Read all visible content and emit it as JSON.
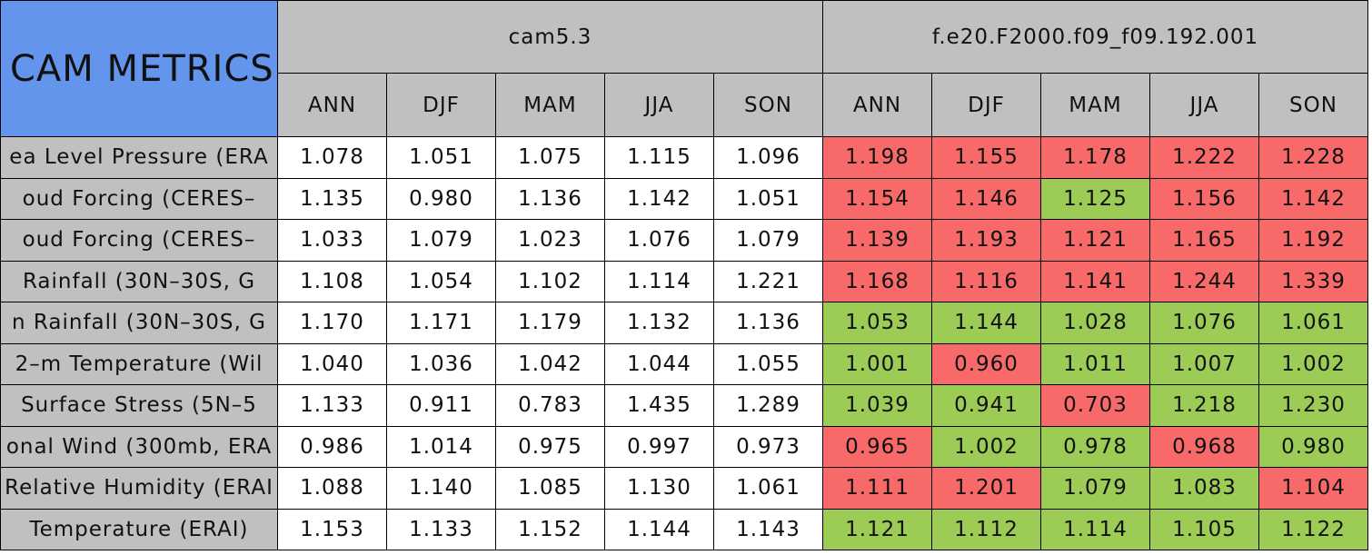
{
  "header": {
    "title": "CAM METRICS",
    "groups": [
      "cam5.3",
      "f.e20.F2000.f09_f09.192.001"
    ],
    "seasons": [
      "ANN",
      "DJF",
      "MAM",
      "JJA",
      "SON"
    ]
  },
  "colors": {
    "header": "#c0c0c0",
    "title": "#6495ed",
    "plain": "#ffffff",
    "red": "#f86a6a",
    "green": "#9ccb56"
  },
  "table": {
    "rows": [
      {
        "label": "ea Level Pressure (ERA",
        "values": [
          "1.078",
          "1.051",
          "1.075",
          "1.115",
          "1.096",
          "1.198",
          "1.155",
          "1.178",
          "1.222",
          "1.228"
        ],
        "colors": [
          "plain",
          "plain",
          "plain",
          "plain",
          "plain",
          "red",
          "red",
          "red",
          "red",
          "red"
        ]
      },
      {
        "label": "oud Forcing (CERES–",
        "values": [
          "1.135",
          "0.980",
          "1.136",
          "1.142",
          "1.051",
          "1.154",
          "1.146",
          "1.125",
          "1.156",
          "1.142"
        ],
        "colors": [
          "plain",
          "plain",
          "plain",
          "plain",
          "plain",
          "red",
          "red",
          "green",
          "red",
          "red"
        ]
      },
      {
        "label": "oud Forcing (CERES–",
        "values": [
          "1.033",
          "1.079",
          "1.023",
          "1.076",
          "1.079",
          "1.139",
          "1.193",
          "1.121",
          "1.165",
          "1.192"
        ],
        "colors": [
          "plain",
          "plain",
          "plain",
          "plain",
          "plain",
          "red",
          "red",
          "red",
          "red",
          "red"
        ]
      },
      {
        "label": "Rainfall (30N–30S, G",
        "values": [
          "1.108",
          "1.054",
          "1.102",
          "1.114",
          "1.221",
          "1.168",
          "1.116",
          "1.141",
          "1.244",
          "1.339"
        ],
        "colors": [
          "plain",
          "plain",
          "plain",
          "plain",
          "plain",
          "red",
          "red",
          "red",
          "red",
          "red"
        ]
      },
      {
        "label": "n Rainfall (30N–30S, G",
        "values": [
          "1.170",
          "1.171",
          "1.179",
          "1.132",
          "1.136",
          "1.053",
          "1.144",
          "1.028",
          "1.076",
          "1.061"
        ],
        "colors": [
          "plain",
          "plain",
          "plain",
          "plain",
          "plain",
          "green",
          "green",
          "green",
          "green",
          "green"
        ]
      },
      {
        "label": "2–m Temperature (Wil",
        "values": [
          "1.040",
          "1.036",
          "1.042",
          "1.044",
          "1.055",
          "1.001",
          "0.960",
          "1.011",
          "1.007",
          "1.002"
        ],
        "colors": [
          "plain",
          "plain",
          "plain",
          "plain",
          "plain",
          "green",
          "red",
          "green",
          "green",
          "green"
        ]
      },
      {
        "label": "Surface Stress (5N–5",
        "values": [
          "1.133",
          "0.911",
          "0.783",
          "1.435",
          "1.289",
          "1.039",
          "0.941",
          "0.703",
          "1.218",
          "1.230"
        ],
        "colors": [
          "plain",
          "plain",
          "plain",
          "plain",
          "plain",
          "green",
          "green",
          "red",
          "green",
          "green"
        ]
      },
      {
        "label": "onal Wind (300mb, ERA",
        "values": [
          "0.986",
          "1.014",
          "0.975",
          "0.997",
          "0.973",
          "0.965",
          "1.002",
          "0.978",
          "0.968",
          "0.980"
        ],
        "colors": [
          "plain",
          "plain",
          "plain",
          "plain",
          "plain",
          "red",
          "green",
          "green",
          "red",
          "green"
        ]
      },
      {
        "label": "Relative Humidity (ERAI",
        "values": [
          "1.088",
          "1.140",
          "1.085",
          "1.130",
          "1.061",
          "1.111",
          "1.201",
          "1.079",
          "1.083",
          "1.104"
        ],
        "colors": [
          "plain",
          "plain",
          "plain",
          "plain",
          "plain",
          "red",
          "red",
          "green",
          "green",
          "red"
        ]
      },
      {
        "label": "Temperature (ERAI)",
        "values": [
          "1.153",
          "1.133",
          "1.152",
          "1.144",
          "1.143",
          "1.121",
          "1.112",
          "1.114",
          "1.105",
          "1.122"
        ],
        "colors": [
          "plain",
          "plain",
          "plain",
          "plain",
          "plain",
          "green",
          "green",
          "green",
          "green",
          "green"
        ]
      }
    ]
  }
}
